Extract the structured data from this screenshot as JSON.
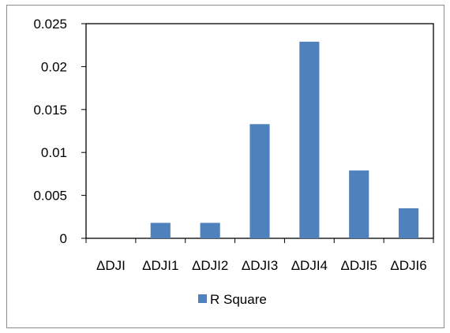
{
  "chart_data": {
    "type": "bar",
    "categories": [
      "ΔDJI",
      "ΔDJI1",
      "ΔDJI2",
      "ΔDJI3",
      "ΔDJI4",
      "ΔDJI5",
      "ΔDJI6"
    ],
    "series": [
      {
        "name": "R Square",
        "values": [
          0,
          0.0018,
          0.0018,
          0.0133,
          0.0229,
          0.0079,
          0.0035
        ],
        "color": "#4f81bd"
      }
    ],
    "yticks": [
      "0",
      "0.005",
      "0.01",
      "0.015",
      "0.02",
      "0.025"
    ],
    "ylim": [
      0,
      0.025
    ],
    "grid": false,
    "legend_position": "bottom",
    "title": "",
    "xlabel": "",
    "ylabel": ""
  }
}
